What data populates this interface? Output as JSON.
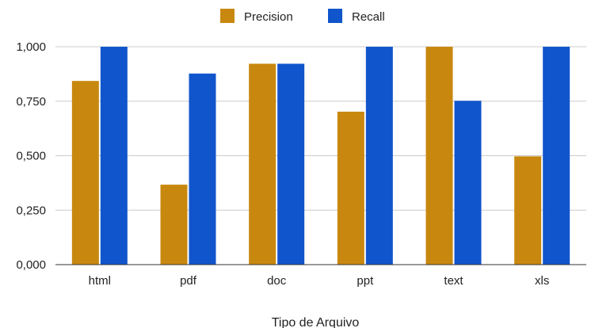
{
  "chart_data": {
    "type": "bar",
    "title": "",
    "xlabel": "Tipo de Arquivo",
    "ylabel": "",
    "categories": [
      "html",
      "pdf",
      "doc",
      "ppt",
      "text",
      "xls"
    ],
    "series": [
      {
        "name": "Precision",
        "color": "#C8880F",
        "values": [
          0.843,
          0.367,
          0.922,
          0.702,
          1.0,
          0.497
        ]
      },
      {
        "name": "Recall",
        "color": "#1155CC",
        "values": [
          1.0,
          0.877,
          0.922,
          1.0,
          0.752,
          1.0
        ]
      }
    ],
    "ylim": [
      0,
      1
    ],
    "yticks": [
      "0,000",
      "0,250",
      "0,500",
      "0,750",
      "1,000"
    ],
    "grid": true,
    "legend_position": "top-center"
  }
}
